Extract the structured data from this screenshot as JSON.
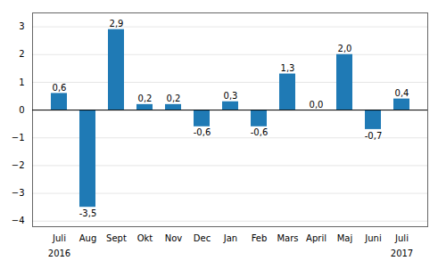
{
  "chart_data": {
    "type": "bar",
    "categories": [
      "Juli",
      "Aug",
      "Sept",
      "Okt",
      "Nov",
      "Dec",
      "Jan",
      "Feb",
      "Mars",
      "April",
      "Maj",
      "Juni",
      "Juli"
    ],
    "values": [
      0.6,
      -3.5,
      2.9,
      0.2,
      0.2,
      -0.6,
      0.3,
      -0.6,
      1.3,
      0.0,
      2.0,
      -0.7,
      0.4
    ],
    "value_labels": [
      "0,6",
      "-3,5",
      "2,9",
      "0,2",
      "0,2",
      "-0,6",
      "0,3",
      "-0,6",
      "1,3",
      "0,0",
      "2,0",
      "-0,7",
      "0,4"
    ],
    "data_labels": true,
    "color": "#1f7ab5",
    "ylim": [
      -4.2,
      3.5
    ],
    "yticks": [
      -4,
      -3,
      -2,
      -1,
      0,
      1,
      2,
      3
    ],
    "grid": true,
    "annotations": [
      {
        "text": "2016",
        "x": 0
      },
      {
        "text": "2017",
        "x": 12
      }
    ]
  }
}
